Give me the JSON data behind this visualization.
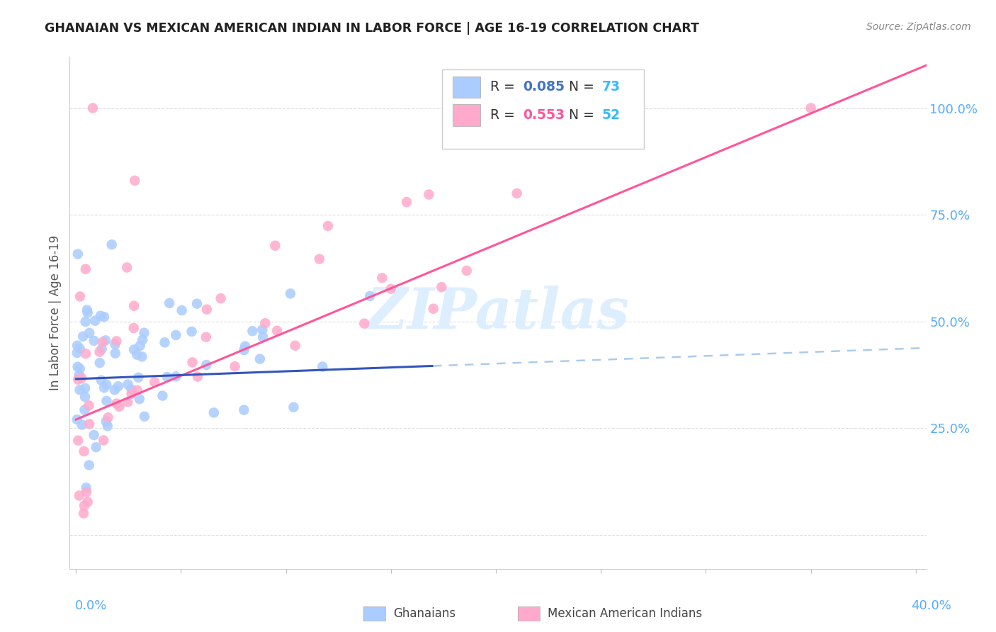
{
  "title": "GHANAIAN VS MEXICAN AMERICAN INDIAN IN LABOR FORCE | AGE 16-19 CORRELATION CHART",
  "source": "Source: ZipAtlas.com",
  "ylabel": "In Labor Force | Age 16-19",
  "ytick_labels": [
    "",
    "25.0%",
    "50.0%",
    "75.0%",
    "100.0%"
  ],
  "ytick_values": [
    0.0,
    0.25,
    0.5,
    0.75,
    1.0
  ],
  "xlim": [
    -0.003,
    0.405
  ],
  "ylim": [
    -0.08,
    1.12
  ],
  "ghanaian_R": 0.085,
  "ghanaian_N": 73,
  "mexican_R": 0.553,
  "mexican_N": 52,
  "ghanaian_color": "#aaccff",
  "mexican_color": "#ffaacc",
  "ghanaian_line_color": "#3355bb",
  "mexican_line_color": "#ff5599",
  "ghanaian_dash_color": "#aaccee",
  "background_color": "#ffffff",
  "grid_color": "#dddddd",
  "title_color": "#222222",
  "source_color": "#888888",
  "axis_label_color": "#555555",
  "ytick_color": "#55aaff",
  "xtick_color": "#55aaff",
  "legend_R_blue": "#4472C4",
  "legend_R_pink": "#ff5599",
  "legend_N_color": "#33bbff",
  "watermark_color": "#ddeeff",
  "seed": 99
}
